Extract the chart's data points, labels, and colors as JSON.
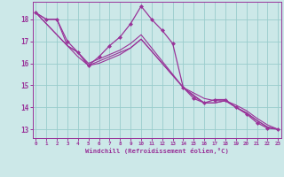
{
  "xlabel": "Windchill (Refroidissement éolien,°C)",
  "background_color": "#cce8e8",
  "grid_color": "#99cccc",
  "line_color": "#993399",
  "x_ticks": [
    0,
    1,
    2,
    3,
    4,
    5,
    6,
    7,
    8,
    9,
    10,
    11,
    12,
    13,
    14,
    15,
    16,
    17,
    18,
    19,
    20,
    21,
    22,
    23
  ],
  "y_ticks": [
    13,
    14,
    15,
    16,
    17,
    18
  ],
  "xlim": [
    -0.3,
    23.3
  ],
  "ylim": [
    12.6,
    18.8
  ],
  "lines": [
    {
      "x": [
        0,
        1,
        2,
        3,
        4,
        5,
        6,
        7,
        8,
        9,
        10,
        11,
        12,
        13,
        14,
        15,
        16,
        17,
        18,
        19,
        20,
        21,
        22,
        23
      ],
      "y": [
        18.3,
        18.0,
        18.0,
        17.0,
        16.5,
        15.9,
        16.3,
        16.8,
        17.2,
        17.8,
        18.6,
        18.0,
        17.5,
        16.9,
        14.9,
        14.4,
        14.2,
        14.35,
        14.35,
        14.0,
        13.7,
        13.3,
        13.05,
        13.0
      ],
      "marker": "D",
      "markersize": 2.0,
      "linewidth": 0.9
    },
    {
      "x": [
        0,
        3,
        4,
        5,
        6,
        7,
        8,
        9,
        10,
        14,
        15,
        16,
        17,
        18,
        19,
        20,
        21,
        22,
        23
      ],
      "y": [
        18.3,
        16.8,
        16.5,
        16.0,
        16.2,
        16.4,
        16.6,
        16.9,
        17.3,
        14.9,
        14.65,
        14.4,
        14.3,
        14.3,
        14.1,
        13.85,
        13.5,
        13.2,
        13.0
      ],
      "marker": null,
      "markersize": 0,
      "linewidth": 0.8
    },
    {
      "x": [
        0,
        3,
        4,
        5,
        6,
        7,
        8,
        9,
        10,
        14,
        15,
        16,
        17,
        18,
        19,
        20,
        21,
        22,
        23
      ],
      "y": [
        18.3,
        16.8,
        16.3,
        15.9,
        16.1,
        16.3,
        16.5,
        16.7,
        17.1,
        14.9,
        14.55,
        14.2,
        14.2,
        14.3,
        14.0,
        13.75,
        13.4,
        13.1,
        13.0
      ],
      "marker": null,
      "markersize": 0,
      "linewidth": 0.8
    },
    {
      "x": [
        0,
        1,
        2,
        3,
        4,
        5,
        6,
        7,
        8,
        9,
        10,
        14,
        15,
        16,
        17,
        18,
        19,
        20,
        21,
        22,
        23
      ],
      "y": [
        18.3,
        18.0,
        18.0,
        16.8,
        16.5,
        15.9,
        16.0,
        16.2,
        16.4,
        16.7,
        17.1,
        14.9,
        14.5,
        14.2,
        14.2,
        14.3,
        14.0,
        13.75,
        13.4,
        13.1,
        13.0
      ],
      "marker": null,
      "markersize": 0,
      "linewidth": 0.8
    }
  ]
}
